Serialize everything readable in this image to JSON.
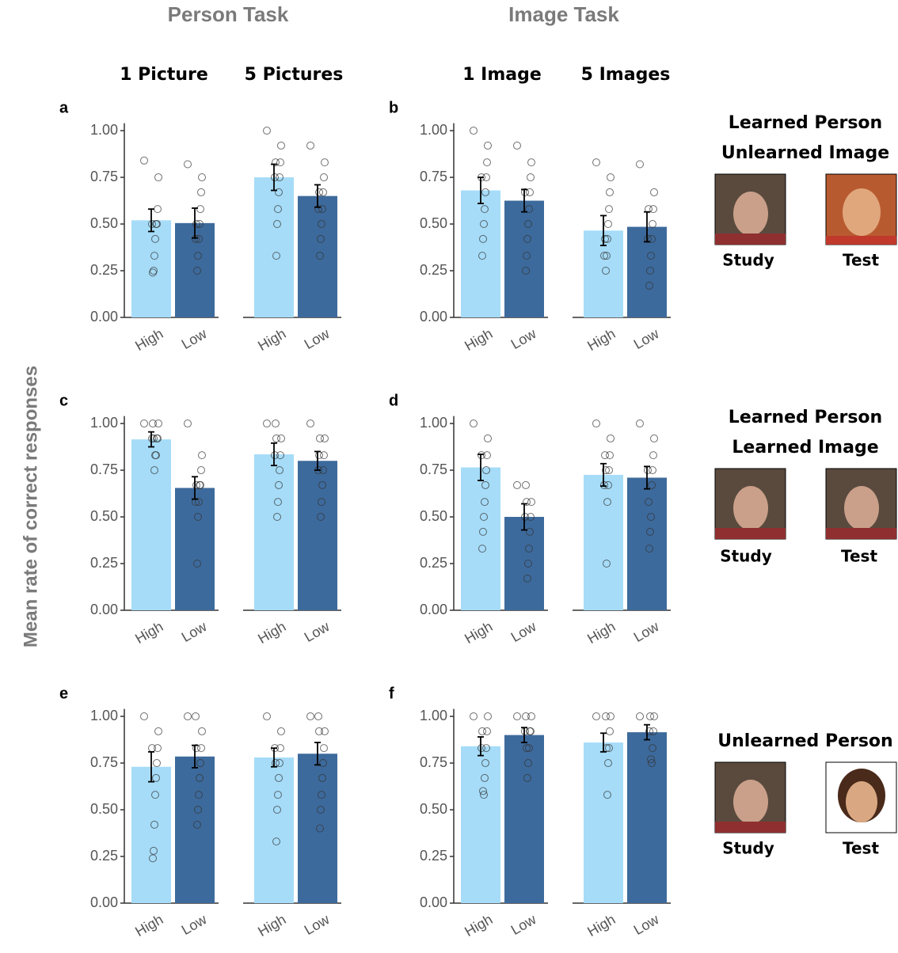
{
  "column_titles": [
    "Person Task",
    "Image Task"
  ],
  "facet_titles": [
    "1 Picture",
    "5 Pictures",
    "1 Image",
    "5 Images"
  ],
  "y_axis_label": "Mean rate of correct responses",
  "conditions": [
    {
      "lines": [
        "Learned Person",
        "Unlearned Image"
      ],
      "labels": [
        "Study",
        "Test"
      ]
    },
    {
      "lines": [
        "Learned Person",
        "Learned Image"
      ],
      "labels": [
        "Study",
        "Test"
      ]
    },
    {
      "lines": [
        "Unlearned Person"
      ],
      "labels": [
        "Study",
        "Test"
      ]
    }
  ],
  "chart_data": [
    {
      "type": "bar",
      "label": "a",
      "categories": [
        "High",
        "Low"
      ],
      "colors": [
        "#a6dcf8",
        "#3d6a9c"
      ],
      "ylim": [
        0,
        1.04
      ],
      "yticks": [
        {
          "value": 0,
          "label": "0.00"
        },
        {
          "value": 0.25,
          "label": "0.25"
        },
        {
          "value": 0.5,
          "label": "0.50"
        },
        {
          "value": 0.75,
          "label": "0.75"
        },
        {
          "value": 1,
          "label": "1.00"
        }
      ],
      "facets": [
        {
          "values": [
            0.52,
            0.505
          ],
          "errors": [
            0.06,
            0.08
          ],
          "points": [
            [
              0.84,
              0.75,
              0.58,
              0.5,
              0.5,
              0.42,
              0.33,
              0.25,
              0.24,
              0.5
            ],
            [
              0.82,
              0.75,
              0.67,
              0.58,
              0.5,
              0.42,
              0.33,
              0.25,
              0.5,
              0.42
            ]
          ]
        },
        {
          "values": [
            0.75,
            0.65
          ],
          "errors": [
            0.07,
            0.06
          ],
          "points": [
            [
              1.0,
              0.92,
              0.83,
              0.75,
              0.67,
              0.58,
              0.5,
              0.33,
              0.83,
              0.75
            ],
            [
              0.92,
              0.83,
              0.75,
              0.67,
              0.58,
              0.5,
              0.42,
              0.33,
              0.67,
              0.58
            ]
          ]
        }
      ]
    },
    {
      "type": "bar",
      "label": "b",
      "categories": [
        "High",
        "Low"
      ],
      "colors": [
        "#a6dcf8",
        "#3d6a9c"
      ],
      "ylim": [
        0,
        1.04
      ],
      "yticks": [
        {
          "value": 0,
          "label": "0.00"
        },
        {
          "value": 0.25,
          "label": "0.25"
        },
        {
          "value": 0.5,
          "label": "0.50"
        },
        {
          "value": 0.75,
          "label": "0.75"
        },
        {
          "value": 1,
          "label": "1.00"
        }
      ],
      "facets": [
        {
          "values": [
            0.68,
            0.625
          ],
          "errors": [
            0.07,
            0.06
          ],
          "points": [
            [
              1.0,
              0.92,
              0.83,
              0.75,
              0.67,
              0.58,
              0.5,
              0.42,
              0.33,
              0.75
            ],
            [
              0.92,
              0.83,
              0.75,
              0.67,
              0.58,
              0.5,
              0.42,
              0.33,
              0.25,
              0.67
            ]
          ]
        },
        {
          "values": [
            0.465,
            0.485
          ],
          "errors": [
            0.08,
            0.08
          ],
          "points": [
            [
              0.83,
              0.75,
              0.67,
              0.58,
              0.5,
              0.42,
              0.33,
              0.25,
              0.42,
              0.33
            ],
            [
              0.82,
              0.67,
              0.58,
              0.5,
              0.42,
              0.33,
              0.25,
              0.17,
              0.58,
              0.42
            ]
          ]
        }
      ]
    },
    {
      "type": "bar",
      "label": "c",
      "categories": [
        "High",
        "Low"
      ],
      "colors": [
        "#a6dcf8",
        "#3d6a9c"
      ],
      "ylim": [
        0,
        1.04
      ],
      "yticks": [
        {
          "value": 0,
          "label": "0.00"
        },
        {
          "value": 0.25,
          "label": "0.25"
        },
        {
          "value": 0.5,
          "label": "0.50"
        },
        {
          "value": 0.75,
          "label": "0.75"
        },
        {
          "value": 1,
          "label": "1.00"
        }
      ],
      "facets": [
        {
          "values": [
            0.915,
            0.655
          ],
          "errors": [
            0.04,
            0.06
          ],
          "points": [
            [
              1.0,
              1.0,
              0.92,
              0.92,
              0.83,
              0.83,
              0.75,
              0.92,
              1.0,
              0.92
            ],
            [
              1.0,
              0.83,
              0.75,
              0.67,
              0.67,
              0.58,
              0.5,
              0.25,
              0.67,
              0.58
            ]
          ]
        },
        {
          "values": [
            0.835,
            0.8
          ],
          "errors": [
            0.06,
            0.05
          ],
          "points": [
            [
              1.0,
              0.92,
              0.83,
              0.75,
              0.67,
              0.58,
              0.5,
              0.92,
              1.0,
              0.83
            ],
            [
              1.0,
              0.92,
              0.83,
              0.75,
              0.67,
              0.58,
              0.5,
              0.92,
              0.83,
              0.75
            ]
          ]
        }
      ]
    },
    {
      "type": "bar",
      "label": "d",
      "categories": [
        "High",
        "Low"
      ],
      "colors": [
        "#a6dcf8",
        "#3d6a9c"
      ],
      "ylim": [
        0,
        1.04
      ],
      "yticks": [
        {
          "value": 0,
          "label": "0.00"
        },
        {
          "value": 0.25,
          "label": "0.25"
        },
        {
          "value": 0.5,
          "label": "0.50"
        },
        {
          "value": 0.75,
          "label": "0.75"
        },
        {
          "value": 1,
          "label": "1.00"
        }
      ],
      "facets": [
        {
          "values": [
            0.765,
            0.5
          ],
          "errors": [
            0.07,
            0.07
          ],
          "points": [
            [
              1.0,
              0.92,
              0.83,
              0.75,
              0.67,
              0.58,
              0.5,
              0.42,
              0.33,
              0.83
            ],
            [
              0.67,
              0.58,
              0.5,
              0.42,
              0.33,
              0.25,
              0.17,
              0.58,
              0.67,
              0.5
            ]
          ]
        },
        {
          "values": [
            0.725,
            0.71
          ],
          "errors": [
            0.06,
            0.06
          ],
          "points": [
            [
              1.0,
              0.92,
              0.83,
              0.75,
              0.67,
              0.58,
              0.25,
              0.75,
              0.83,
              0.67
            ],
            [
              1.0,
              0.92,
              0.83,
              0.75,
              0.67,
              0.5,
              0.42,
              0.33,
              0.58,
              0.75
            ]
          ]
        }
      ]
    },
    {
      "type": "bar",
      "label": "e",
      "categories": [
        "High",
        "Low"
      ],
      "colors": [
        "#a6dcf8",
        "#3d6a9c"
      ],
      "ylim": [
        0,
        1.04
      ],
      "yticks": [
        {
          "value": 0,
          "label": "0.00"
        },
        {
          "value": 0.25,
          "label": "0.25"
        },
        {
          "value": 0.5,
          "label": "0.50"
        },
        {
          "value": 0.75,
          "label": "0.75"
        },
        {
          "value": 1,
          "label": "1.00"
        }
      ],
      "facets": [
        {
          "values": [
            0.73,
            0.785
          ],
          "errors": [
            0.08,
            0.06
          ],
          "points": [
            [
              1.0,
              0.92,
              0.83,
              0.75,
              0.67,
              0.58,
              0.42,
              0.28,
              0.24,
              0.83
            ],
            [
              1.0,
              0.92,
              0.83,
              0.75,
              0.67,
              0.58,
              0.5,
              0.42,
              0.83,
              1.0
            ]
          ]
        },
        {
          "values": [
            0.78,
            0.8
          ],
          "errors": [
            0.05,
            0.06
          ],
          "points": [
            [
              1.0,
              0.92,
              0.83,
              0.75,
              0.67,
              0.58,
              0.5,
              0.33,
              0.75,
              0.83
            ],
            [
              1.0,
              0.92,
              0.83,
              0.75,
              0.67,
              0.58,
              0.5,
              0.4,
              0.92,
              1.0
            ]
          ]
        }
      ]
    },
    {
      "type": "bar",
      "label": "f",
      "categories": [
        "High",
        "Low"
      ],
      "colors": [
        "#a6dcf8",
        "#3d6a9c"
      ],
      "ylim": [
        0,
        1.04
      ],
      "yticks": [
        {
          "value": 0,
          "label": "0.00"
        },
        {
          "value": 0.25,
          "label": "0.25"
        },
        {
          "value": 0.5,
          "label": "0.50"
        },
        {
          "value": 0.75,
          "label": "0.75"
        },
        {
          "value": 1,
          "label": "1.00"
        }
      ],
      "facets": [
        {
          "values": [
            0.84,
            0.9
          ],
          "errors": [
            0.05,
            0.04
          ],
          "points": [
            [
              1.0,
              1.0,
              0.92,
              0.83,
              0.75,
              0.67,
              0.58,
              0.6,
              0.92,
              0.83
            ],
            [
              1.0,
              1.0,
              0.92,
              0.92,
              0.83,
              0.75,
              0.67,
              0.83,
              1.0,
              0.92
            ]
          ]
        },
        {
          "values": [
            0.86,
            0.915
          ],
          "errors": [
            0.05,
            0.04
          ],
          "points": [
            [
              1.0,
              1.0,
              0.92,
              0.83,
              0.75,
              0.58,
              0.83,
              1.0
            ],
            [
              1.0,
              1.0,
              0.92,
              0.83,
              0.75,
              0.77,
              1.0,
              0.92
            ]
          ]
        }
      ]
    }
  ]
}
